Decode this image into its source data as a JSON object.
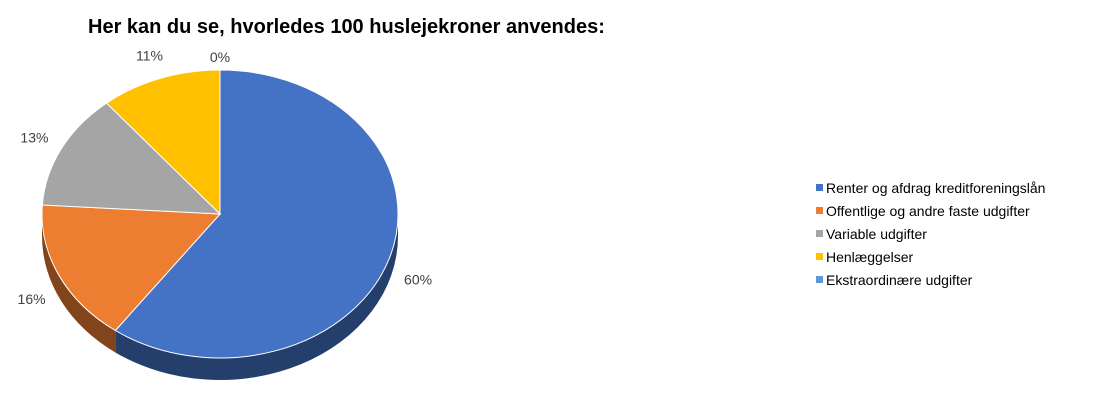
{
  "chart_data": {
    "type": "pie",
    "title": "Her kan du se, hvorledes 100 huslejekroner anvendes:",
    "categories": [
      "Renter og afdrag kreditforeningslån",
      "Offentlige og andre faste udgifter",
      "Variable udgifter",
      "Henlæggelser",
      "Ekstraordinære udgifter"
    ],
    "values": [
      60,
      16,
      13,
      11,
      0
    ],
    "labels": [
      "60%",
      "16%",
      "13%",
      "11%",
      "0%"
    ],
    "colors": [
      "#4472C4",
      "#ED7D31",
      "#A5A5A5",
      "#FFC000",
      "#5B9BD5"
    ],
    "legend_position": "right",
    "style": "3d-pie"
  }
}
